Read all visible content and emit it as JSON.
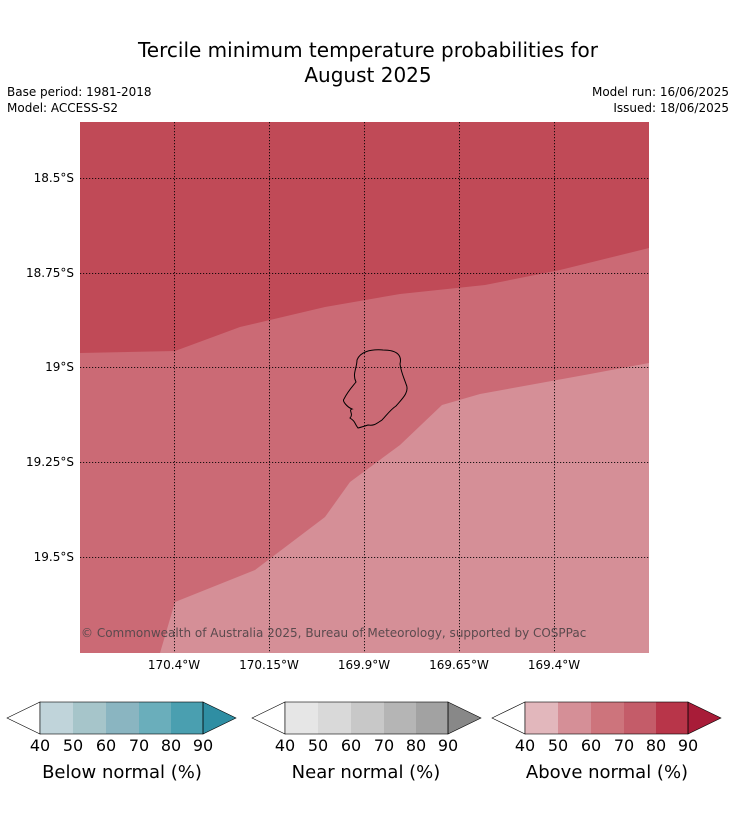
{
  "header": {
    "title_line1": "Tercile minimum temperature probabilities for",
    "title_line2": "August 2025",
    "base_period": "Base period: 1981-2018",
    "model": "Model: ACCESS-S2",
    "model_run": "Model run: 16/06/2025",
    "issued": "Issued: 18/06/2025"
  },
  "map": {
    "latitude_labels": [
      "18.5°S",
      "18.75°S",
      "19°S",
      "19.25°S",
      "19.5°S"
    ],
    "longitude_labels": [
      "170.4°W",
      "170.15°W",
      "169.9°W",
      "169.65°W",
      "169.4°W"
    ],
    "copyright": "© Commonwealth of Australia 2025, Bureau of Meteorology, supported by COSPPac",
    "region_colors": {
      "above_80": "#c04a57",
      "above_70": "#cb6a75",
      "above_60": "#d58f97"
    }
  },
  "legend": {
    "ticks": [
      "40",
      "50",
      "60",
      "70",
      "80",
      "90"
    ],
    "below": {
      "label": "Below normal (%)",
      "colors": [
        "#ffffff",
        "#c0d4da",
        "#a6c5ca",
        "#8ab5c1",
        "#6aaebb",
        "#4a9fb0",
        "#2f8ea3"
      ]
    },
    "near": {
      "label": "Near normal (%)",
      "colors": [
        "#ffffff",
        "#e6e6e6",
        "#d9d9d9",
        "#c8c8c8",
        "#b5b5b5",
        "#a2a2a2",
        "#888888"
      ]
    },
    "above": {
      "label": "Above normal (%)",
      "colors": [
        "#ffffff",
        "#e2b7bc",
        "#d58f97",
        "#cd747c",
        "#c45c69",
        "#b83549",
        "#a81c38"
      ]
    }
  }
}
